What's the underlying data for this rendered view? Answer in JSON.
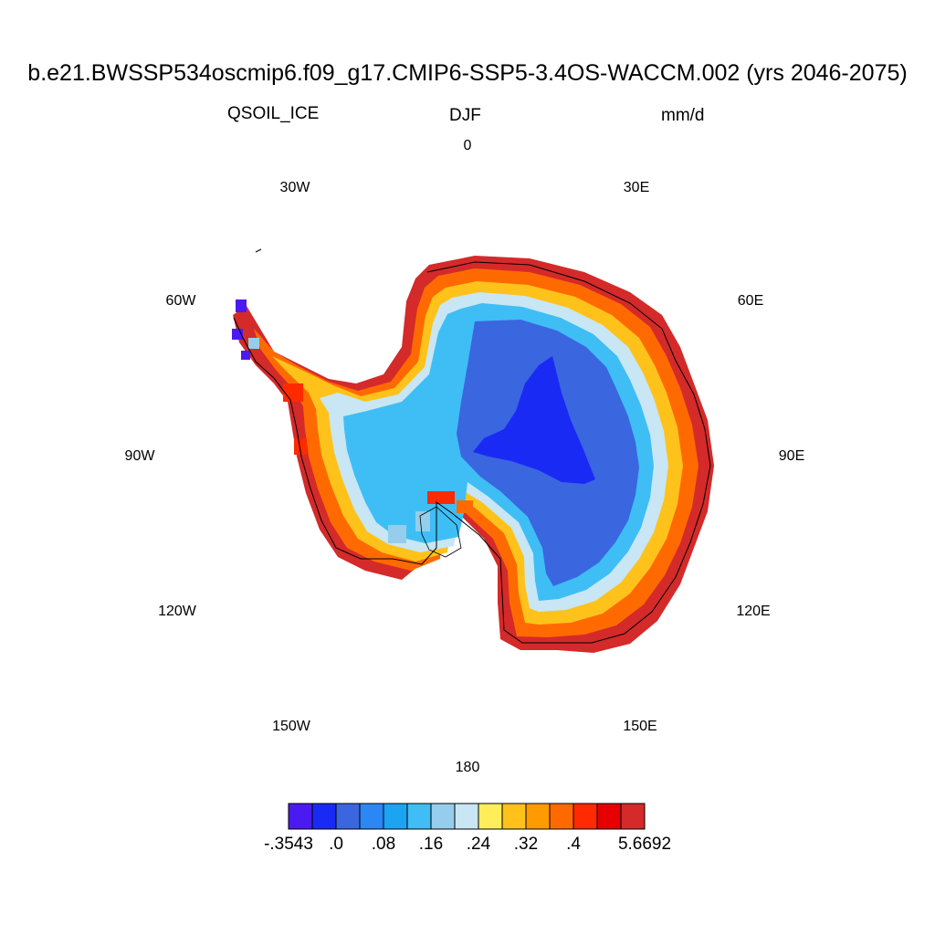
{
  "title": "b.e21.BWSSP534oscmip6.f09_g17.CMIP6-SSP5-3.4OS-WACCM.002 (yrs 2046-2075)",
  "variable": "QSOIL_ICE",
  "season": "DJF",
  "units": "mm/d",
  "longitude_labels": [
    "0",
    "30E",
    "60E",
    "90E",
    "120E",
    "150E",
    "180",
    "150W",
    "120W",
    "90W",
    "60W",
    "30W"
  ],
  "colorbar": {
    "colors": [
      "#4b1af0",
      "#1a2af5",
      "#3a66e0",
      "#2a87f5",
      "#1aa4f2",
      "#3ebef5",
      "#96cdec",
      "#c8e6f4",
      "#ffee5a",
      "#ffc21a",
      "#ff9b00",
      "#ff6a00",
      "#ff2a00",
      "#e60000",
      "#d42a2a"
    ],
    "labels": [
      "-.3543",
      ".0",
      ".08",
      ".16",
      ".24",
      ".32",
      ".4",
      "5.6692"
    ]
  }
}
